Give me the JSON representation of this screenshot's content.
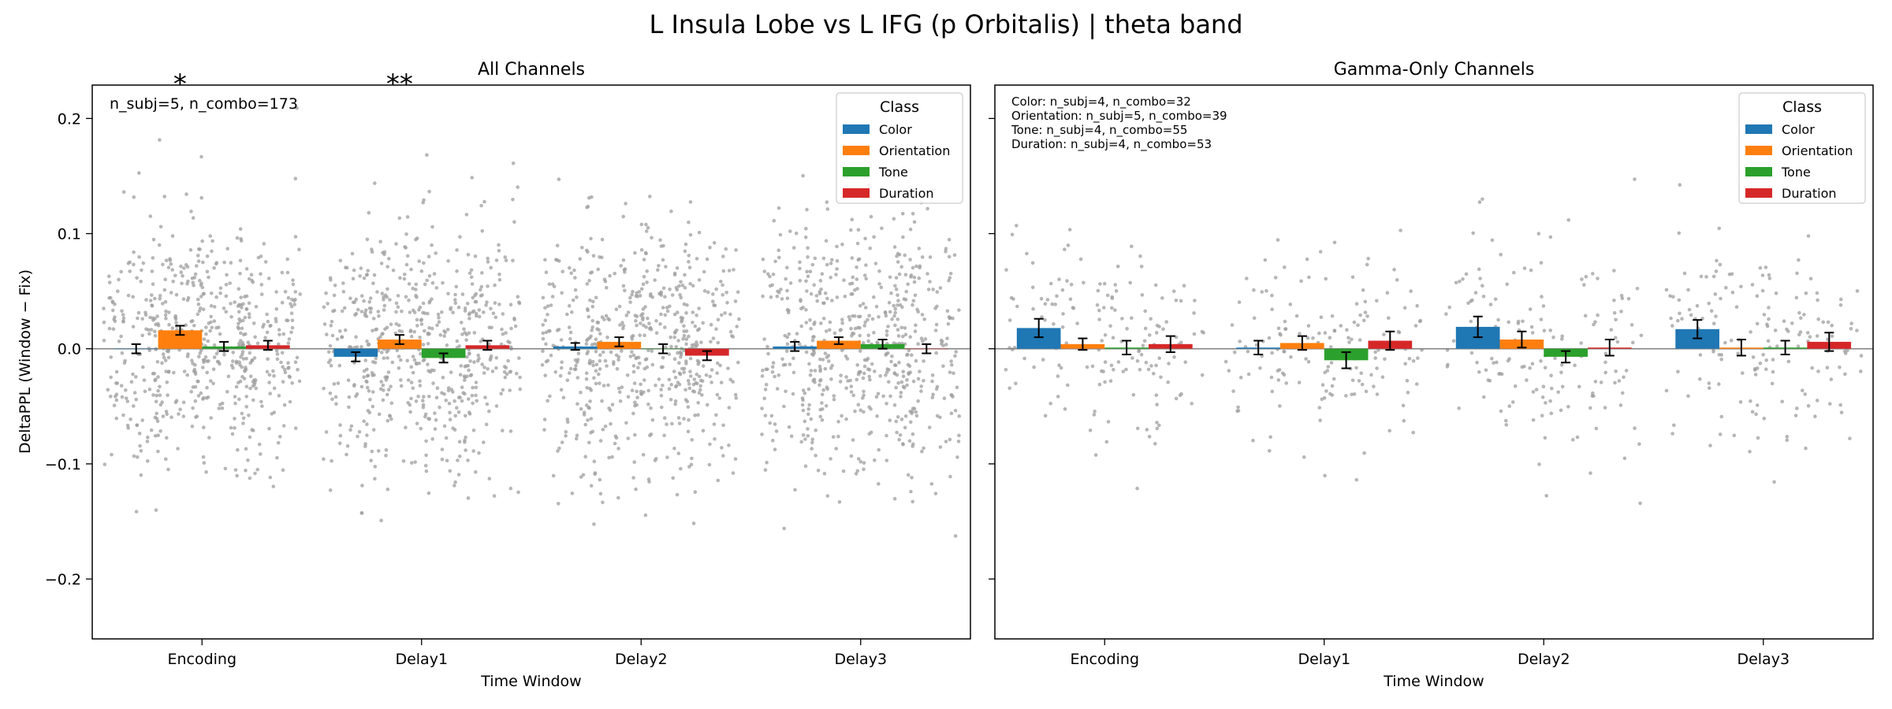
{
  "figure": {
    "title": "L Insula Lobe vs L IFG (p Orbitalis)  |  theta band"
  },
  "legend": {
    "title": "Class"
  },
  "colors": {
    "Color": "#1f77b4",
    "Orientation": "#ff7f0e",
    "Tone": "#2ca02c",
    "Duration": "#d62728",
    "points": "#9e9e9e",
    "significance": "#e31a1c"
  },
  "chart_data": [
    {
      "type": "bar",
      "title": "All Channels",
      "xlabel": "Time Window",
      "ylabel": "DeltaPPL (Window − Fix)",
      "ylim": [
        -0.252,
        0.229
      ],
      "yticks": [
        -0.2,
        -0.1,
        0.0,
        0.1,
        0.2
      ],
      "ytick_labels": [
        "−0.2",
        "−0.1",
        "0.0",
        "0.1",
        "0.2"
      ],
      "categories": [
        "Encoding",
        "Delay1",
        "Delay2",
        "Delay3"
      ],
      "series": [
        {
          "name": "Color",
          "values": [
            0.0,
            -0.007,
            0.002,
            0.002
          ],
          "errors": [
            0.004,
            0.004,
            0.003,
            0.004
          ]
        },
        {
          "name": "Orientation",
          "values": [
            0.016,
            0.008,
            0.006,
            0.007
          ],
          "errors": [
            0.004,
            0.004,
            0.004,
            0.003
          ]
        },
        {
          "name": "Tone",
          "values": [
            0.002,
            -0.008,
            0.0,
            0.004
          ],
          "errors": [
            0.004,
            0.004,
            0.004,
            0.004
          ]
        },
        {
          "name": "Duration",
          "values": [
            0.003,
            0.003,
            -0.006,
            0.0
          ],
          "errors": [
            0.004,
            0.004,
            0.004,
            0.004
          ]
        }
      ],
      "annotation": "n_subj=5, n_combo=173",
      "annotation_lines": [],
      "significance": [
        {
          "category": "Encoding",
          "series": "Orientation",
          "label": "*"
        },
        {
          "category": "Delay1",
          "series": "Orientation",
          "label": "**"
        }
      ],
      "legend_position": "top-right",
      "reference_line": 0,
      "grid": false
    },
    {
      "type": "bar",
      "title": "Gamma-Only Channels",
      "xlabel": "Time Window",
      "ylabel": "",
      "ylim": [
        -0.252,
        0.229
      ],
      "yticks": [
        -0.2,
        -0.1,
        0.0,
        0.1,
        0.2
      ],
      "ytick_labels": [],
      "categories": [
        "Encoding",
        "Delay1",
        "Delay2",
        "Delay3"
      ],
      "series": [
        {
          "name": "Color",
          "values": [
            0.018,
            0.001,
            0.019,
            0.017
          ],
          "errors": [
            0.008,
            0.006,
            0.009,
            0.008
          ]
        },
        {
          "name": "Orientation",
          "values": [
            0.004,
            0.005,
            0.008,
            0.001
          ],
          "errors": [
            0.005,
            0.006,
            0.007,
            0.007
          ]
        },
        {
          "name": "Tone",
          "values": [
            0.001,
            -0.01,
            -0.007,
            0.001
          ],
          "errors": [
            0.006,
            0.007,
            0.005,
            0.006
          ]
        },
        {
          "name": "Duration",
          "values": [
            0.004,
            0.007,
            0.001,
            0.006
          ],
          "errors": [
            0.007,
            0.008,
            0.007,
            0.008
          ]
        }
      ],
      "annotation": "",
      "annotation_lines": [
        "Color: n_subj=4, n_combo=32",
        "Orientation: n_subj=5, n_combo=39",
        "Tone: n_subj=4, n_combo=55",
        "Duration: n_subj=4, n_combo=53"
      ],
      "significance": [],
      "legend_position": "top-right",
      "reference_line": 0,
      "grid": false
    }
  ]
}
